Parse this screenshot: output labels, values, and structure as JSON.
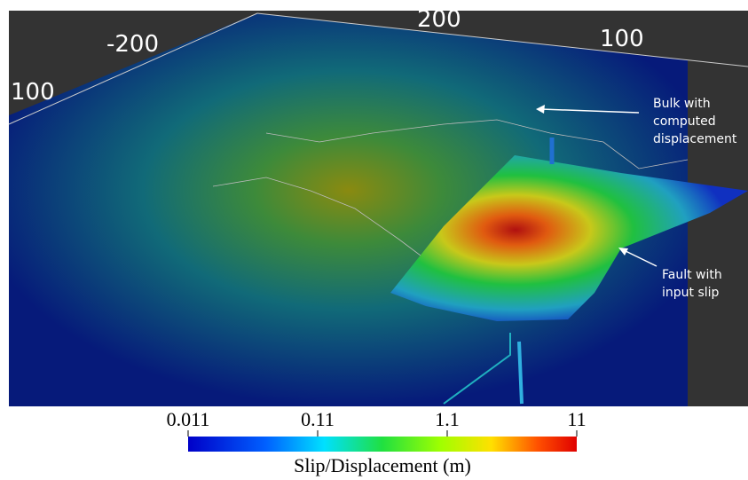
{
  "axis_labels": [
    "-200",
    "100",
    "200",
    "100"
  ],
  "annotations": {
    "bulk": [
      "Bulk with",
      "computed",
      "displacement"
    ],
    "fault": [
      "Fault with",
      "input slip"
    ]
  },
  "colorbar": {
    "label": "Slip/Displacement (m)",
    "range": [
      0.011,
      11
    ],
    "scale": "log",
    "ticks": [
      0.011,
      0.11,
      1.1,
      11
    ]
  }
}
